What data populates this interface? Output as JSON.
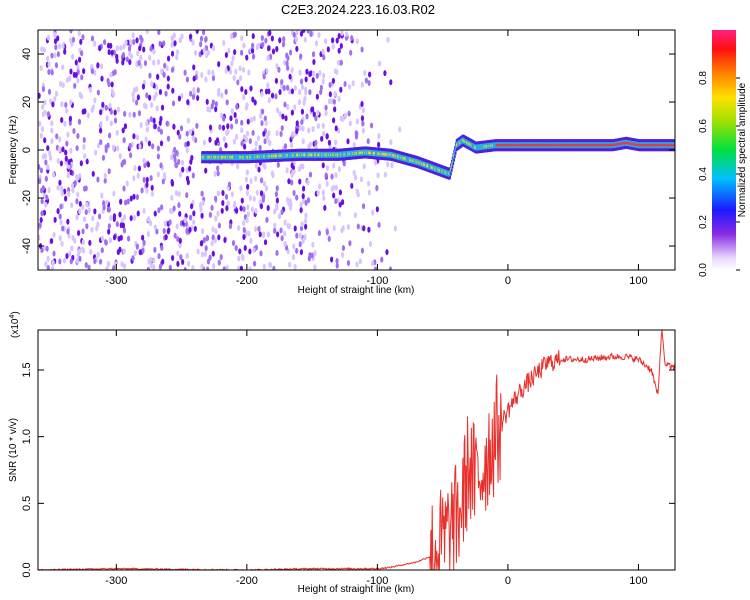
{
  "title": "C2E3.2024.223.16.03.R02",
  "spectrogram": {
    "ylabel": "Frequency (Hz)",
    "xlabel": "Height of straight line (km)",
    "xticks": [
      "-300",
      "-200",
      "-100",
      "0",
      "100"
    ],
    "yticks": [
      "-40",
      "-20",
      "0",
      "20",
      "40"
    ],
    "colorbar_label": "Normalized spectral amplitude",
    "colorbar_ticks": [
      "0.0",
      "0.2",
      "0.4",
      "0.6",
      "0.8"
    ]
  },
  "snr_plot": {
    "ylabel": "SNR (10 * v/v)",
    "xlabel": "Height of straight line (km)",
    "scale_base": "(x10",
    "scale_exp": "4",
    "scale_close": ")",
    "xticks": [
      "-300",
      "-200",
      "-100",
      "0",
      "100"
    ],
    "yticks": [
      "0.0",
      "0.5",
      "1.0",
      "1.5"
    ],
    "line_color": "#e8312d"
  },
  "chart_data": [
    {
      "type": "heatmap",
      "xlabel": "Height of straight line (km)",
      "ylabel": "Frequency (Hz)",
      "xlim": [
        -360,
        128
      ],
      "ylim": [
        -50,
        50
      ],
      "colorbar_range": [
        0,
        1
      ],
      "ridge": {
        "x": [
          -235,
          -200,
          -160,
          -130,
          -110,
          -90,
          -70,
          -55,
          -45,
          -40,
          -35,
          -25,
          -10,
          0,
          30,
          60,
          80,
          90,
          100,
          115,
          128
        ],
        "y": [
          -3,
          -3,
          -2,
          -2,
          -1,
          -2,
          -5,
          -8,
          -10,
          2,
          4,
          1,
          2,
          2,
          2,
          2,
          2,
          3,
          2,
          2,
          2
        ]
      }
    },
    {
      "type": "line",
      "xlabel": "Height of straight line (km)",
      "ylabel": "SNR (10 * v/v)",
      "xlim": [
        -360,
        128
      ],
      "ylim": [
        0,
        1.8
      ],
      "multiplier": "x10^4",
      "x": [
        -360,
        -300,
        -200,
        -150,
        -100,
        -90,
        -80,
        -70,
        -60,
        -50,
        -40,
        -35,
        -30,
        -25,
        -20,
        -15,
        -10,
        -5,
        0,
        10,
        20,
        30,
        40,
        60,
        80,
        90,
        100,
        110,
        115,
        118,
        120,
        125,
        128
      ],
      "y": [
        0.0,
        0.01,
        0.0,
        0.01,
        0.01,
        0.02,
        0.04,
        0.06,
        0.1,
        0.2,
        0.35,
        0.5,
        0.8,
        0.65,
        0.75,
        0.9,
        1.0,
        1.1,
        1.2,
        1.35,
        1.45,
        1.55,
        1.58,
        1.58,
        1.6,
        1.6,
        1.58,
        1.5,
        1.3,
        1.85,
        1.55,
        1.52,
        1.52
      ]
    }
  ]
}
